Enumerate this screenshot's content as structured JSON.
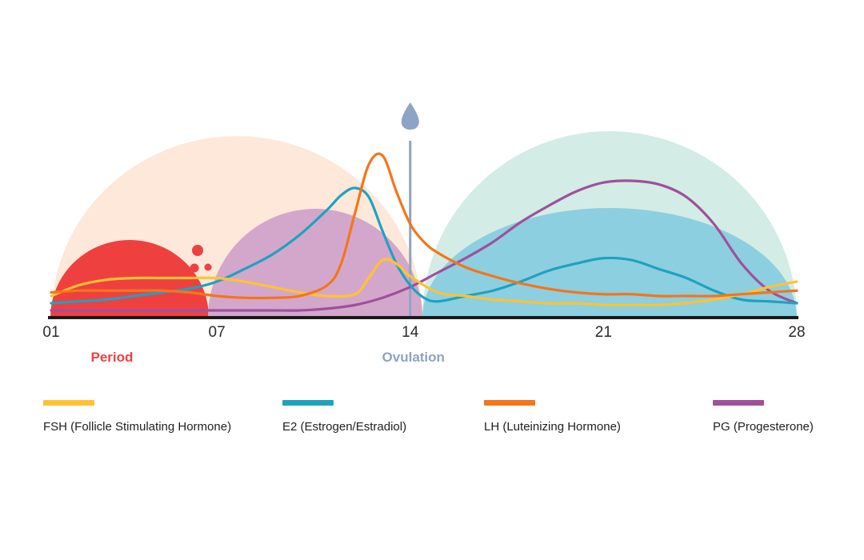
{
  "chart_data": {
    "type": "line",
    "title": "",
    "xlabel": "",
    "ylabel": "",
    "x_range": [
      1,
      28
    ],
    "x_ticks": [
      "01",
      "07",
      "14",
      "21",
      "28"
    ],
    "x_tick_values": [
      1,
      7,
      14,
      21,
      28
    ],
    "phases": [
      {
        "name": "Period",
        "color": "#ef4040",
        "day": 3.2
      },
      {
        "name": "Ovulation",
        "color": "#8fa3c4",
        "day": 14
      }
    ],
    "series": [
      {
        "name": "FSH (Follicle Stimulating Hormone)",
        "color": "#ffc233",
        "x": [
          1,
          2,
          3,
          4,
          5,
          6,
          7,
          8,
          9,
          10,
          11,
          12,
          12.5,
          13,
          13.5,
          14,
          15,
          16,
          17,
          18,
          19,
          20,
          21,
          22,
          23,
          24,
          25,
          26,
          27,
          28
        ],
        "y": [
          0.12,
          0.18,
          0.21,
          0.22,
          0.22,
          0.22,
          0.22,
          0.2,
          0.17,
          0.14,
          0.12,
          0.13,
          0.22,
          0.32,
          0.3,
          0.23,
          0.14,
          0.12,
          0.1,
          0.09,
          0.08,
          0.08,
          0.07,
          0.07,
          0.07,
          0.08,
          0.1,
          0.13,
          0.17,
          0.2
        ]
      },
      {
        "name": "E2 (Estrogen/Estradiol)",
        "color": "#1fa2c0",
        "x": [
          1,
          2,
          3,
          4,
          5,
          6,
          7,
          8,
          9,
          10,
          11,
          11.5,
          12,
          12.5,
          13,
          13.5,
          14,
          14.5,
          15,
          16,
          17,
          18,
          19,
          20,
          21,
          22,
          23,
          24,
          25,
          26,
          27,
          28
        ],
        "y": [
          0.08,
          0.09,
          0.1,
          0.12,
          0.14,
          0.16,
          0.2,
          0.27,
          0.35,
          0.46,
          0.6,
          0.68,
          0.72,
          0.67,
          0.48,
          0.3,
          0.18,
          0.11,
          0.09,
          0.12,
          0.15,
          0.2,
          0.26,
          0.3,
          0.33,
          0.32,
          0.27,
          0.22,
          0.15,
          0.1,
          0.09,
          0.08
        ]
      },
      {
        "name": "LH (Luteinizing Hormone)",
        "color": "#f5751b",
        "x": [
          1,
          2,
          3,
          4,
          5,
          6,
          7,
          8,
          9,
          10,
          11,
          11.5,
          12,
          12.5,
          13,
          13.5,
          14,
          14.5,
          15,
          16,
          17,
          18,
          19,
          20,
          21,
          22,
          23,
          24,
          25,
          26,
          27,
          28
        ],
        "y": [
          0.14,
          0.15,
          0.15,
          0.15,
          0.15,
          0.14,
          0.12,
          0.11,
          0.11,
          0.12,
          0.18,
          0.3,
          0.58,
          0.85,
          0.9,
          0.7,
          0.52,
          0.42,
          0.36,
          0.28,
          0.23,
          0.19,
          0.16,
          0.14,
          0.13,
          0.13,
          0.12,
          0.12,
          0.12,
          0.13,
          0.14,
          0.15
        ]
      },
      {
        "name": "PG (Progesterone)",
        "color": "#a0509b",
        "x": [
          1,
          2,
          3,
          4,
          5,
          6,
          7,
          8,
          9,
          10,
          11,
          12,
          13,
          14,
          15,
          16,
          17,
          18,
          19,
          20,
          21,
          22,
          23,
          24,
          25,
          26,
          27,
          28
        ],
        "y": [
          0.04,
          0.04,
          0.04,
          0.04,
          0.04,
          0.04,
          0.04,
          0.04,
          0.04,
          0.04,
          0.05,
          0.07,
          0.11,
          0.17,
          0.25,
          0.33,
          0.42,
          0.53,
          0.62,
          0.7,
          0.75,
          0.76,
          0.74,
          0.67,
          0.52,
          0.3,
          0.15,
          0.08
        ]
      }
    ]
  },
  "legend": [
    {
      "label": "FSH (Follicle Stimulating Hormone)",
      "color": "#ffc233"
    },
    {
      "label": "E2 (Estrogen/Estradiol)",
      "color": "#1fa2c0"
    },
    {
      "label": "LH (Luteinizing Hormone)",
      "color": "#f5751b"
    },
    {
      "label": "PG (Progesterone)",
      "color": "#a0509b"
    }
  ],
  "colors": {
    "follicular_bg": "#fde8d9",
    "luteal_bg": "#d3ece6",
    "period_fill": "#ef4040",
    "follicle_fill": "#d3a7cb",
    "corpus_fill": "#8ccfe0",
    "ovulation_marker": "#8fa3c4",
    "baseline": "#1a1a1a"
  }
}
